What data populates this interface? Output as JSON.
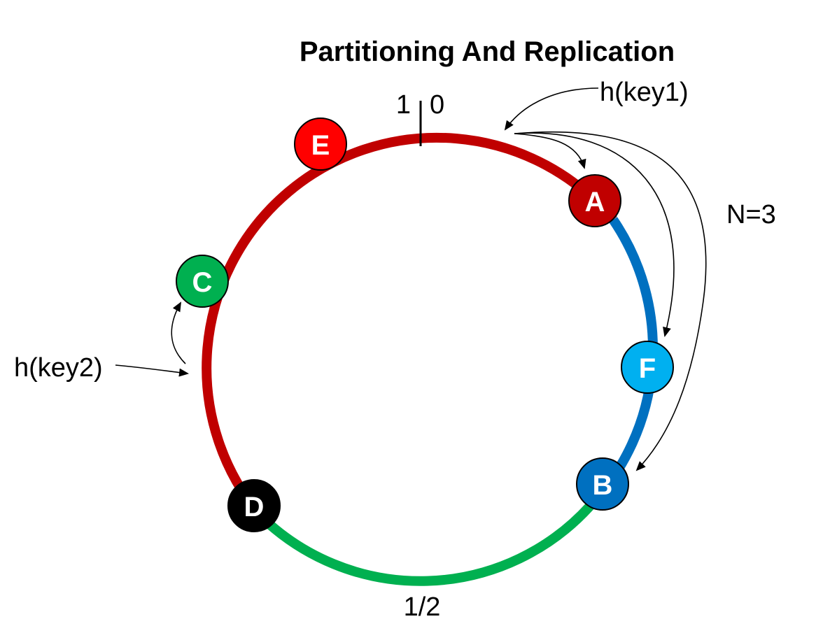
{
  "title": "Partitioning And Replication",
  "labels": {
    "top_left": "1",
    "top_right": "0",
    "bottom": "1/2",
    "key1": "h(key1)",
    "key2": "h(key2)",
    "replication": "N=3"
  },
  "colors": {
    "ring_red": "#c00000",
    "ring_blue": "#0070c0",
    "ring_green": "#00b050",
    "node_A": "#c00000",
    "node_B": "#0070c0",
    "node_C": "#00b050",
    "node_D": "#000000",
    "node_E": "#ff0000",
    "node_F": "#00b0f0"
  },
  "nodes": [
    {
      "id": "A",
      "label": "A"
    },
    {
      "id": "F",
      "label": "F"
    },
    {
      "id": "B",
      "label": "B"
    },
    {
      "id": "D",
      "label": "D"
    },
    {
      "id": "C",
      "label": "C"
    },
    {
      "id": "E",
      "label": "E"
    }
  ]
}
